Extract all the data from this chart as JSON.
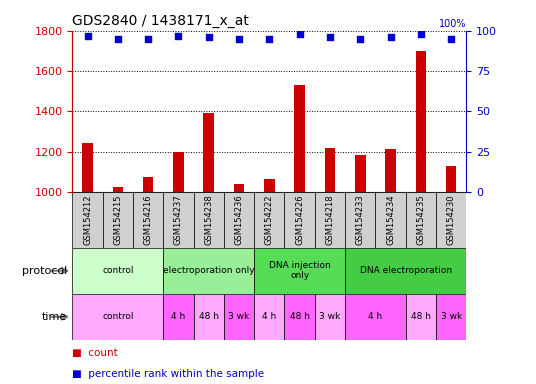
{
  "title": "GDS2840 / 1438171_x_at",
  "samples": [
    "GSM154212",
    "GSM154215",
    "GSM154216",
    "GSM154237",
    "GSM154238",
    "GSM154236",
    "GSM154222",
    "GSM154226",
    "GSM154218",
    "GSM154233",
    "GSM154234",
    "GSM154235",
    "GSM154230"
  ],
  "counts": [
    1245,
    1025,
    1075,
    1200,
    1390,
    1040,
    1065,
    1530,
    1220,
    1185,
    1215,
    1700,
    1130
  ],
  "percentile_ranks": [
    97,
    95,
    95,
    97,
    96,
    95,
    95,
    98,
    96,
    95,
    96,
    98,
    95
  ],
  "ylim_left": [
    1000,
    1800
  ],
  "ylim_right": [
    0,
    100
  ],
  "yticks_left": [
    1000,
    1200,
    1400,
    1600,
    1800
  ],
  "yticks_right": [
    0,
    25,
    50,
    75,
    100
  ],
  "bar_color": "#cc0000",
  "dot_color": "#0000cc",
  "sample_box_color": "#d0d0d0",
  "protocol_row": [
    {
      "label": "control",
      "start": 0,
      "end": 3,
      "color": "#ccffcc"
    },
    {
      "label": "electroporation only",
      "start": 3,
      "end": 6,
      "color": "#99ee99"
    },
    {
      "label": "DNA injection\nonly",
      "start": 6,
      "end": 9,
      "color": "#55dd55"
    },
    {
      "label": "DNA electroporation",
      "start": 9,
      "end": 13,
      "color": "#44cc44"
    }
  ],
  "time_row": [
    {
      "label": "control",
      "start": 0,
      "end": 3,
      "color": "#ffaaff"
    },
    {
      "label": "4 h",
      "start": 3,
      "end": 4,
      "color": "#ff66ff"
    },
    {
      "label": "48 h",
      "start": 4,
      "end": 5,
      "color": "#ffaaff"
    },
    {
      "label": "3 wk",
      "start": 5,
      "end": 6,
      "color": "#ff66ff"
    },
    {
      "label": "4 h",
      "start": 6,
      "end": 7,
      "color": "#ffaaff"
    },
    {
      "label": "48 h",
      "start": 7,
      "end": 8,
      "color": "#ff66ff"
    },
    {
      "label": "3 wk",
      "start": 8,
      "end": 9,
      "color": "#ffaaff"
    },
    {
      "label": "4 h",
      "start": 9,
      "end": 11,
      "color": "#ff66ff"
    },
    {
      "label": "48 h",
      "start": 11,
      "end": 12,
      "color": "#ffaaff"
    },
    {
      "label": "3 wk",
      "start": 12,
      "end": 13,
      "color": "#ff66ff"
    }
  ],
  "bg_color": "#ffffff",
  "label_color_left": "#cc0000",
  "label_color_right": "#0000cc"
}
